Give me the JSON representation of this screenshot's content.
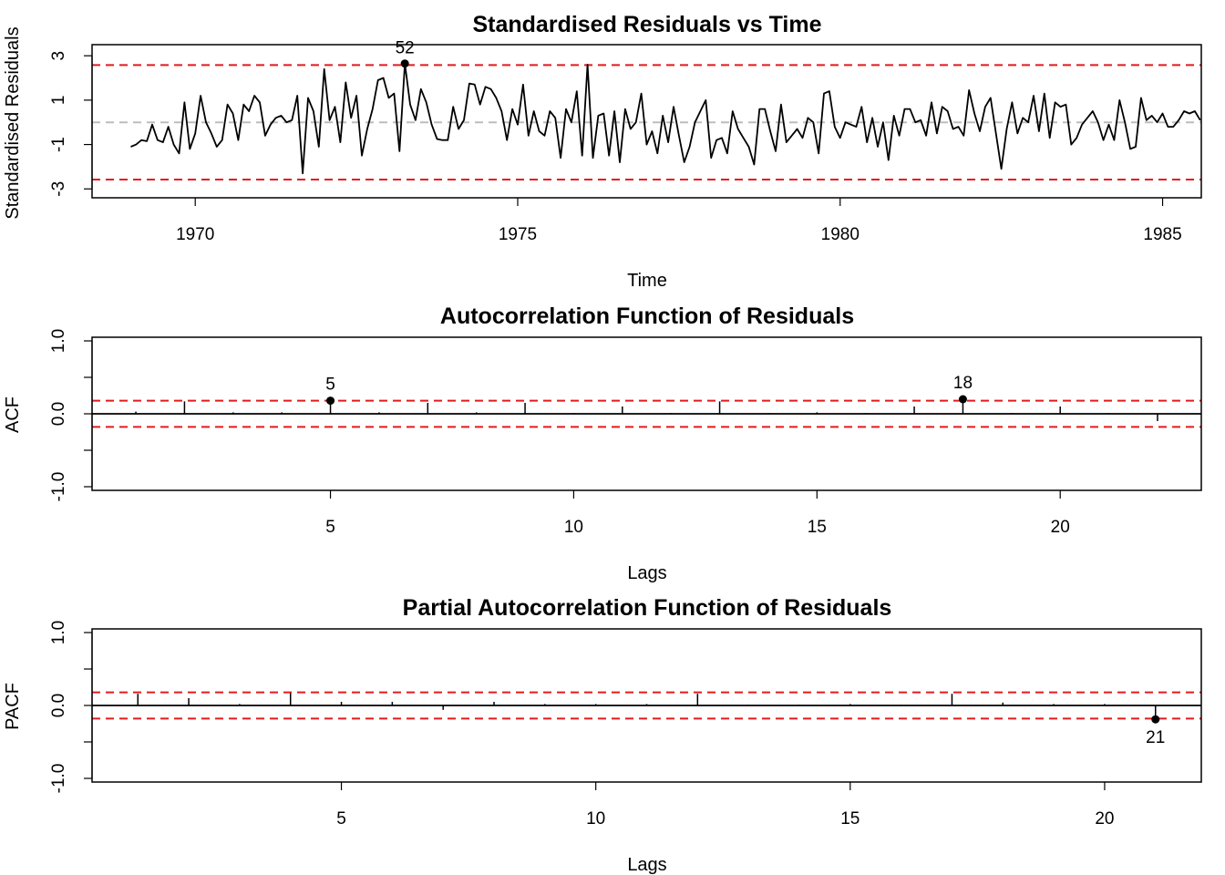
{
  "chart_data": [
    {
      "id": "residuals",
      "type": "line",
      "title": "Standardised Residuals vs Time",
      "xlabel": "Time",
      "ylabel": "Standardised Residuals",
      "xlim": [
        1968.4,
        1985.6
      ],
      "ylim": [
        -3.4,
        3.5
      ],
      "xticks": [
        1970,
        1975,
        1980,
        1985
      ],
      "yticks": [
        -3,
        -1,
        1,
        3
      ],
      "bounds": [
        -2.58,
        2.58
      ],
      "zero_line": 0,
      "highlight": {
        "label": "52",
        "x": 1973.25,
        "y": 2.65
      },
      "x_start": 1969.0,
      "x_step": 0.08333,
      "values": [
        -1.1,
        -1.0,
        -0.8,
        -0.85,
        -0.1,
        -0.8,
        -0.9,
        -0.2,
        -1.0,
        -1.4,
        0.9,
        -1.2,
        -0.5,
        1.2,
        0.0,
        -0.5,
        -1.1,
        -0.8,
        0.8,
        0.4,
        -0.8,
        0.8,
        0.5,
        1.2,
        0.9,
        -0.6,
        -0.1,
        0.2,
        0.3,
        0.0,
        0.1,
        1.2,
        -2.3,
        1.1,
        0.5,
        -1.1,
        2.4,
        0.1,
        0.7,
        -0.9,
        1.8,
        0.2,
        1.2,
        -1.5,
        -0.3,
        0.6,
        1.9,
        2.0,
        1.1,
        1.3,
        -1.3,
        2.65,
        0.8,
        0.1,
        1.5,
        0.9,
        -0.1,
        -0.75,
        -0.8,
        -0.8,
        0.7,
        -0.3,
        0.1,
        1.75,
        1.7,
        0.8,
        1.6,
        1.5,
        1.1,
        0.5,
        -0.8,
        0.6,
        -0.1,
        1.7,
        -0.6,
        0.5,
        -0.4,
        -0.6,
        0.5,
        0.2,
        -1.6,
        0.6,
        0.0,
        1.4,
        -1.5,
        2.6,
        -1.6,
        0.3,
        0.4,
        -1.5,
        0.5,
        -1.8,
        0.6,
        -0.3,
        0.0,
        1.3,
        -1.0,
        -0.4,
        -1.4,
        0.3,
        -0.9,
        0.7,
        -0.6,
        -1.8,
        -1.1,
        0.0,
        0.5,
        1.0,
        -1.6,
        -0.8,
        -0.7,
        -1.4,
        0.5,
        -0.3,
        -0.7,
        -1.1,
        -1.9,
        0.6,
        0.6,
        -0.4,
        -1.3,
        0.8,
        -0.9,
        -0.6,
        -0.3,
        -0.7,
        0.2,
        0.0,
        -1.4,
        1.3,
        1.4,
        -0.2,
        -0.7,
        0.0,
        -0.1,
        -0.2,
        0.7,
        -0.9,
        0.2,
        -1.1,
        0.0,
        -1.7,
        0.3,
        -0.6,
        0.6,
        0.6,
        0.0,
        0.1,
        -0.6,
        0.9,
        -0.5,
        0.7,
        0.5,
        -0.3,
        -0.2,
        -0.6,
        1.45,
        0.4,
        -0.4,
        0.7,
        1.1,
        -0.5,
        -2.1,
        -0.3,
        0.9,
        -0.5,
        0.2,
        0.0,
        1.2,
        -0.4,
        1.3,
        -0.7,
        0.9,
        0.7,
        0.8,
        -1.0,
        -0.7,
        -0.1,
        0.2,
        0.5,
        0.0,
        -0.8,
        -0.1,
        -0.8,
        1.0,
        0.0,
        -1.2,
        -1.1,
        1.1,
        0.1,
        0.3,
        0.0,
        0.4,
        -0.2,
        -0.2,
        0.1,
        0.5,
        0.4,
        0.5,
        0.1
      ]
    },
    {
      "id": "acf",
      "type": "bar",
      "title": "Autocorrelation Function of Residuals",
      "xlabel": "Lags",
      "ylabel": "ACF",
      "xlim": [
        0.1,
        22.9
      ],
      "ylim": [
        -1.05,
        1.05
      ],
      "xticks": [
        5,
        10,
        15,
        20
      ],
      "yticks": [
        -1.0,
        -0.5,
        0.0,
        0.5,
        1.0
      ],
      "ytick_labels": [
        "-1.0",
        "",
        "0.0",
        "",
        "1.0"
      ],
      "bounds": [
        -0.18,
        0.18
      ],
      "lags": [
        1,
        2,
        3,
        4,
        5,
        6,
        7,
        8,
        9,
        10,
        11,
        12,
        13,
        14,
        15,
        16,
        17,
        18,
        19,
        20,
        21,
        22
      ],
      "values": [
        0.03,
        0.17,
        0.02,
        0.02,
        0.18,
        0.02,
        0.15,
        0.02,
        0.15,
        0.01,
        0.1,
        0.01,
        0.17,
        0.01,
        0.02,
        0.01,
        0.1,
        0.2,
        0.01,
        0.1,
        0.01,
        -0.1
      ],
      "highlights": [
        {
          "label": "5",
          "lag": 5,
          "value": 0.18
        },
        {
          "label": "18",
          "lag": 18,
          "value": 0.2
        }
      ]
    },
    {
      "id": "pacf",
      "type": "bar",
      "title": "Partial Autocorrelation Function of Residuals",
      "xlabel": "Lags",
      "ylabel": "PACF",
      "xlim": [
        0.1,
        21.9
      ],
      "ylim": [
        -1.05,
        1.05
      ],
      "xticks": [
        5,
        10,
        15,
        20
      ],
      "yticks": [
        -1.0,
        -0.5,
        0.0,
        0.5,
        1.0
      ],
      "ytick_labels": [
        "-1.0",
        "",
        "0.0",
        "",
        "1.0"
      ],
      "bounds": [
        -0.18,
        0.18
      ],
      "lags": [
        1,
        2,
        3,
        4,
        5,
        6,
        7,
        8,
        9,
        10,
        11,
        12,
        13,
        14,
        15,
        16,
        17,
        18,
        19,
        20,
        21
      ],
      "values": [
        0.16,
        0.1,
        0.02,
        0.17,
        0.05,
        0.05,
        -0.06,
        0.05,
        0.02,
        0.02,
        0.02,
        0.16,
        0.01,
        0.01,
        0.02,
        0.01,
        0.16,
        0.04,
        0.02,
        0.02,
        -0.19
      ],
      "highlights": [
        {
          "label": "21",
          "lag": 21,
          "value": -0.19
        }
      ]
    }
  ]
}
